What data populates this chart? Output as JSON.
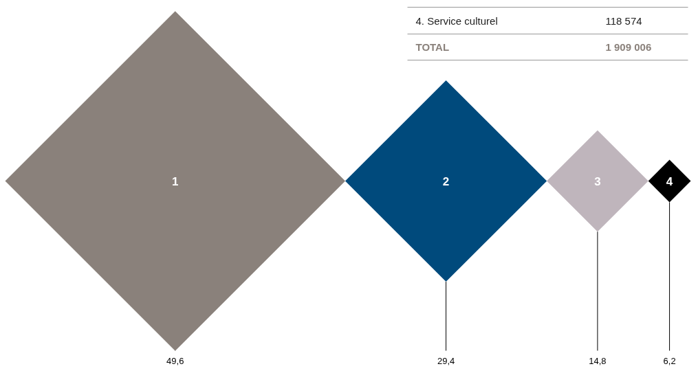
{
  "chart_data": {
    "type": "other",
    "categories": [
      "1",
      "2",
      "3",
      "4"
    ],
    "values": [
      49.6,
      29.4,
      14.8,
      6.2
    ],
    "value_labels": [
      "49,6",
      "29,4",
      "14,8",
      "6,2"
    ],
    "colors": [
      "#8a817b",
      "#004a7c",
      "#bfb5bc",
      "#000000"
    ],
    "annotations": [
      "4. Service culturel",
      "118 574",
      "TOTAL",
      "1 909 006"
    ]
  }
}
